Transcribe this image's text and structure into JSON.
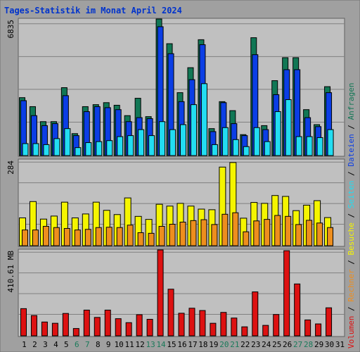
{
  "title": "Tages-Statistik im Monat April 2024",
  "colors": {
    "frame": "#a0a0a0",
    "panel": "#c0c0c0",
    "grid": "#808080",
    "title": "#0033cc",
    "anfragen": "#117755",
    "dateien": "#0b3ee5",
    "seiten": "#22ddf2",
    "besuche": "#f5f500",
    "rechner": "#ee8e1e",
    "volumen": "#dd1111",
    "weekday_label": "#000000",
    "weekend_label": "#1a7a5a",
    "bar_outline": "#000000"
  },
  "chart_data": [
    {
      "type": "bar",
      "panel": "top",
      "axis_label": "6835",
      "ylim": [
        0,
        6835
      ],
      "grid": true,
      "series": [
        {
          "name": "Anfragen",
          "color_key": "anfragen",
          "values": [
            2900,
            2450,
            1700,
            1700,
            3400,
            1100,
            2450,
            2550,
            2650,
            2520,
            2000,
            2870,
            1950,
            6835,
            5600,
            3150,
            4400,
            5800,
            1350,
            2700,
            2250,
            1050,
            5900,
            1500,
            3750,
            4900,
            4900,
            2300,
            1550,
            3450
          ]
        },
        {
          "name": "Dateien",
          "color_key": "dateien",
          "values": [
            2750,
            2000,
            1500,
            1600,
            3000,
            1000,
            2200,
            2450,
            2400,
            2300,
            1700,
            1900,
            1850,
            6450,
            5100,
            2700,
            3800,
            5550,
            1200,
            2650,
            1600,
            1000,
            5050,
            1300,
            3050,
            4300,
            4300,
            1900,
            1450,
            3150
          ]
        },
        {
          "name": "Seiten",
          "color_key": "seiten",
          "values": [
            600,
            600,
            550,
            850,
            1350,
            400,
            650,
            700,
            750,
            950,
            1000,
            1300,
            1000,
            1700,
            1300,
            1550,
            2550,
            3600,
            550,
            1400,
            800,
            450,
            1400,
            700,
            2200,
            2800,
            950,
            950,
            900,
            1300
          ]
        }
      ]
    },
    {
      "type": "bar",
      "panel": "middle",
      "axis_label": "284",
      "ylim": [
        0,
        284
      ],
      "grid": true,
      "series": [
        {
          "name": "Besuche",
          "color_key": "besuche",
          "values": [
            92,
            146,
            88,
            98,
            144,
            92,
            105,
            144,
            117,
            103,
            158,
            97,
            87,
            137,
            131,
            140,
            131,
            121,
            119,
            260,
            275,
            91,
            143,
            140,
            166,
            163,
            116,
            134,
            149,
            93
          ]
        },
        {
          "name": "Rechner",
          "color_key": "rechner",
          "values": [
            52,
            52,
            64,
            60,
            57,
            52,
            54,
            60,
            61,
            60,
            68,
            43,
            41,
            64,
            71,
            78,
            83,
            86,
            70,
            104,
            109,
            46,
            82,
            87,
            100,
            97,
            70,
            84,
            75,
            60
          ]
        }
      ]
    },
    {
      "type": "bar",
      "panel": "bottom",
      "axis_label": "410.61 MB",
      "ylim": [
        0,
        410.61
      ],
      "grid": true,
      "series": [
        {
          "name": "Volumen",
          "color_key": "volumen",
          "values": [
            130,
            97,
            66,
            60,
            107,
            35,
            123,
            88,
            123,
            82,
            63,
            101,
            79,
            410.61,
            223,
            108,
            132,
            121,
            60,
            112,
            85,
            43,
            210,
            50,
            102,
            407,
            248,
            76,
            57,
            134
          ]
        }
      ]
    }
  ],
  "x_axis": {
    "tick_labels": [
      "1",
      "2",
      "3",
      "4",
      "5",
      "6",
      "7",
      "8",
      "9",
      "10",
      "11",
      "12",
      "13",
      "14",
      "15",
      "16",
      "17",
      "18",
      "19",
      "20",
      "21",
      "22",
      "23",
      "24",
      "25",
      "26",
      "27",
      "28",
      "29",
      "30",
      "31"
    ],
    "weekend_days": [
      6,
      7,
      13,
      14,
      20,
      21,
      27,
      28
    ]
  },
  "side_legend": [
    {
      "text": "Volumen",
      "color_key": "volumen"
    },
    {
      "text": " / ",
      "color_key": "weekday_label"
    },
    {
      "text": "Rechner",
      "color_key": "rechner"
    },
    {
      "text": " / ",
      "color_key": "weekday_label"
    },
    {
      "text": "Besuche",
      "color_key": "besuche"
    },
    {
      "text": " / ",
      "color_key": "weekday_label"
    },
    {
      "text": "Seiten",
      "color_key": "seiten"
    },
    {
      "text": " / ",
      "color_key": "weekday_label"
    },
    {
      "text": "Dateien",
      "color_key": "dateien"
    },
    {
      "text": " / ",
      "color_key": "weekday_label"
    },
    {
      "text": "Anfragen",
      "color_key": "anfragen"
    }
  ]
}
